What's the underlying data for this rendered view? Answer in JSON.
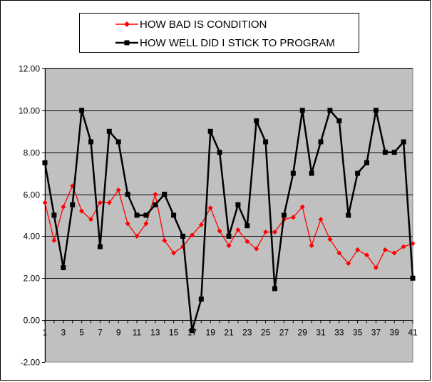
{
  "chart_data": {
    "type": "line",
    "title": "",
    "xlabel": "",
    "ylabel": "",
    "ylim": [
      -2,
      12
    ],
    "ytick_step": 2,
    "y_tick_format": "0.00",
    "x": [
      1,
      2,
      3,
      4,
      5,
      6,
      7,
      8,
      9,
      10,
      11,
      12,
      13,
      14,
      15,
      16,
      17,
      18,
      19,
      20,
      21,
      22,
      23,
      24,
      25,
      26,
      27,
      28,
      29,
      30,
      31,
      32,
      33,
      34,
      35,
      36,
      37,
      38,
      39,
      40,
      41
    ],
    "x_tick_labels": [
      "1",
      "3",
      "5",
      "7",
      "9",
      "11",
      "13",
      "15",
      "17",
      "19",
      "21",
      "23",
      "25",
      "27",
      "29",
      "31",
      "33",
      "35",
      "37",
      "39",
      "41"
    ],
    "grid": "horizontal",
    "plot_background": "#c0c0c0",
    "legend_position": "top",
    "series": [
      {
        "name": "HOW BAD IS CONDITION",
        "color": "#ff0000",
        "marker": "diamond",
        "values": [
          5.6,
          3.8,
          5.4,
          6.4,
          5.2,
          4.8,
          5.6,
          5.6,
          6.2,
          4.6,
          4.0,
          4.6,
          6.0,
          3.8,
          3.2,
          3.5,
          4.05,
          4.55,
          5.35,
          4.25,
          3.55,
          4.3,
          3.75,
          3.4,
          4.2,
          4.2,
          4.8,
          4.9,
          5.4,
          3.55,
          4.8,
          3.85,
          3.2,
          2.7,
          3.35,
          3.1,
          2.5,
          3.35,
          3.2,
          3.5,
          3.65
        ]
      },
      {
        "name": "HOW WELL DID I STICK TO PROGRAM",
        "color": "#000000",
        "marker": "square",
        "values": [
          7.5,
          5.0,
          2.5,
          5.5,
          10.0,
          8.5,
          3.5,
          9.0,
          8.5,
          6.0,
          5.0,
          5.0,
          5.5,
          6.0,
          5.0,
          4.0,
          -0.5,
          1.0,
          9.0,
          8.0,
          4.0,
          5.5,
          4.5,
          9.5,
          8.5,
          1.5,
          5.0,
          7.0,
          10.0,
          7.0,
          8.5,
          10.0,
          9.5,
          5.0,
          7.0,
          7.5,
          10.0,
          8.0,
          8.0,
          8.5,
          2.0
        ]
      }
    ]
  }
}
